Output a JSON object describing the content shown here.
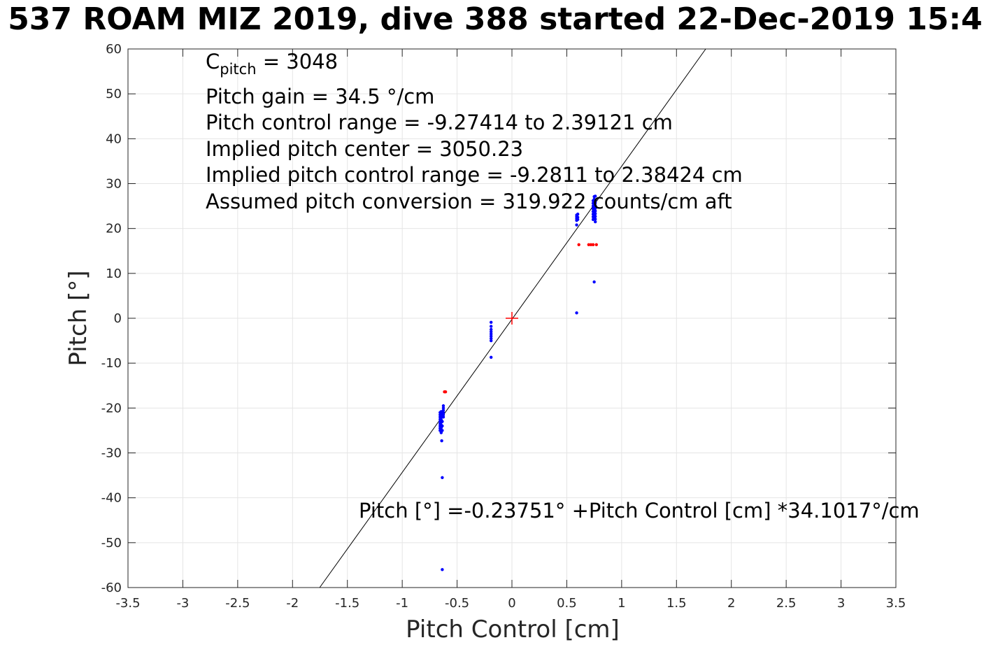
{
  "title": "537 ROAM MIZ 2019, dive 388 started 22-Dec-2019 15:4",
  "annotations": {
    "c_pitch_base": "C",
    "c_pitch_sub": "pitch",
    "c_pitch_value": " = 3048",
    "pitch_gain": "Pitch gain = 34.5 °/cm",
    "control_range": "Pitch control range = -9.27414 to 2.39121 cm",
    "implied_center": "Implied pitch center = 3050.23",
    "implied_range": "Implied pitch control range = -9.2811 to 2.38424 cm",
    "conversion": "Assumed pitch conversion = 319.922 counts/cm aft",
    "fit_equation": "Pitch [°] =-0.23751° +Pitch Control [cm] *34.1017°/cm"
  },
  "colors": {
    "normal_points": "#0000ff",
    "flagged_points": "#ff0000",
    "fit_line": "#000000",
    "center_marker": "#ff0000",
    "grid": "#e5e5e5"
  },
  "chart_data": {
    "type": "scatter",
    "xlabel": "Pitch Control [cm]",
    "ylabel": "Pitch [°]",
    "xlim": [
      -3.5,
      3.5
    ],
    "ylim": [
      -60,
      60
    ],
    "xticks": [
      -3.5,
      -3,
      -2.5,
      -2,
      -1.5,
      -1,
      -0.5,
      0,
      0.5,
      1,
      1.5,
      2,
      2.5,
      3,
      3.5
    ],
    "yticks": [
      -60,
      -50,
      -40,
      -30,
      -20,
      -10,
      0,
      10,
      20,
      30,
      40,
      50,
      60
    ],
    "xtick_labels": [
      "-3.5",
      "-3",
      "-2.5",
      "-2",
      "-1.5",
      "-1",
      "-0.5",
      "0",
      "0.5",
      "1",
      "1.5",
      "2",
      "2.5",
      "3",
      "3.5"
    ],
    "ytick_labels": [
      "-60",
      "-50",
      "-40",
      "-30",
      "-20",
      "-10",
      "0",
      "10",
      "20",
      "30",
      "40",
      "50",
      "60"
    ],
    "grid": true,
    "fit_line": {
      "intercept": -0.23751,
      "slope": 34.1017
    },
    "center_marker": [
      0,
      0
    ],
    "series": [
      {
        "color": "blue",
        "points": [
          [
            -0.655,
            -21.0
          ],
          [
            -0.655,
            -21.5
          ],
          [
            -0.655,
            -22.0
          ],
          [
            -0.655,
            -22.5
          ],
          [
            -0.655,
            -23.0
          ],
          [
            -0.655,
            -23.5
          ],
          [
            -0.655,
            -24.0
          ],
          [
            -0.655,
            -24.5
          ],
          [
            -0.655,
            -25.0
          ],
          [
            -0.645,
            -20.8
          ],
          [
            -0.645,
            -21.4
          ],
          [
            -0.645,
            -22.0
          ],
          [
            -0.645,
            -22.6
          ],
          [
            -0.645,
            -23.2
          ],
          [
            -0.645,
            -23.8
          ],
          [
            -0.645,
            -24.4
          ],
          [
            -0.645,
            -25.0
          ],
          [
            -0.645,
            -25.5
          ],
          [
            -0.635,
            -21.0
          ],
          [
            -0.635,
            -22.0
          ],
          [
            -0.635,
            -23.0
          ],
          [
            -0.635,
            -24.0
          ],
          [
            -0.635,
            -25.0
          ],
          [
            -0.625,
            -19.5
          ],
          [
            -0.625,
            -20.0
          ],
          [
            -0.625,
            -20.5
          ],
          [
            -0.625,
            -21.0
          ],
          [
            -0.625,
            -21.5
          ],
          [
            -0.625,
            -22.0
          ],
          [
            -0.64,
            -27.3
          ],
          [
            -0.635,
            -35.5
          ],
          [
            -0.635,
            -56.0
          ],
          [
            -0.19,
            -0.9
          ],
          [
            -0.19,
            -1.8
          ],
          [
            -0.19,
            -2.5
          ],
          [
            -0.19,
            -3.0
          ],
          [
            -0.19,
            -3.5
          ],
          [
            -0.19,
            -4.0
          ],
          [
            -0.19,
            -4.5
          ],
          [
            -0.19,
            -5.0
          ],
          [
            -0.19,
            -8.7
          ],
          [
            0.59,
            20.8
          ],
          [
            0.59,
            21.8
          ],
          [
            0.59,
            22.2
          ],
          [
            0.59,
            22.6
          ],
          [
            0.59,
            23.0
          ],
          [
            0.6,
            22.0
          ],
          [
            0.6,
            22.5
          ],
          [
            0.6,
            23.2
          ],
          [
            0.59,
            1.2
          ],
          [
            0.74,
            22.0
          ],
          [
            0.74,
            22.6
          ],
          [
            0.74,
            23.2
          ],
          [
            0.74,
            23.8
          ],
          [
            0.74,
            24.4
          ],
          [
            0.74,
            25.0
          ],
          [
            0.74,
            25.6
          ],
          [
            0.74,
            26.2
          ],
          [
            0.75,
            22.3
          ],
          [
            0.75,
            22.9
          ],
          [
            0.75,
            23.5
          ],
          [
            0.75,
            24.1
          ],
          [
            0.75,
            24.7
          ],
          [
            0.75,
            25.3
          ],
          [
            0.75,
            25.9
          ],
          [
            0.75,
            26.5
          ],
          [
            0.75,
            27.1
          ],
          [
            0.76,
            21.5
          ],
          [
            0.76,
            22.1
          ],
          [
            0.76,
            22.7
          ],
          [
            0.76,
            23.3
          ],
          [
            0.76,
            23.9
          ],
          [
            0.76,
            24.5
          ],
          [
            0.76,
            25.1
          ],
          [
            0.76,
            25.7
          ],
          [
            0.76,
            26.3
          ],
          [
            0.76,
            27.2
          ],
          [
            0.75,
            8.1
          ]
        ]
      },
      {
        "color": "red",
        "points": [
          [
            -0.615,
            -16.4
          ],
          [
            -0.605,
            -16.4
          ],
          [
            0.61,
            16.4
          ],
          [
            0.7,
            16.4
          ],
          [
            0.72,
            16.4
          ],
          [
            0.74,
            16.4
          ],
          [
            0.77,
            16.4
          ]
        ]
      }
    ]
  }
}
